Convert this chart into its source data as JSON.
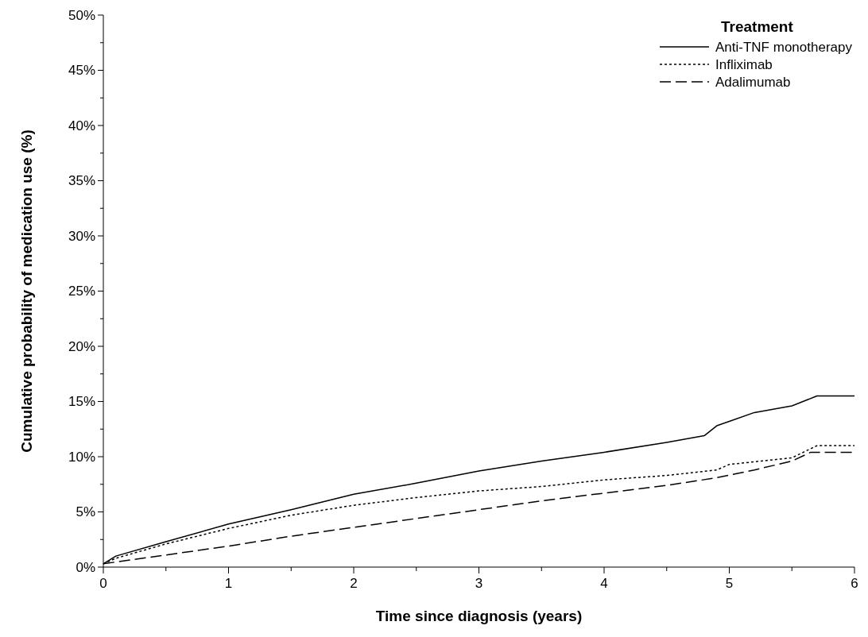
{
  "chart_data": {
    "type": "line",
    "xlabel": "Time since diagnosis (years)",
    "ylabel": "Cumulative probability of medication use (%)",
    "legend_title": "Treatment",
    "legend": "top right",
    "grid": false,
    "xlim": [
      0,
      6
    ],
    "ylim": [
      0,
      50
    ],
    "xticks": [
      0,
      {
        "value": 0.5,
        "label": null
      },
      1,
      {
        "value": 1.5,
        "label": null
      },
      2,
      {
        "value": 2.5,
        "label": null
      },
      3,
      {
        "value": 3.5,
        "label": null
      },
      4,
      {
        "value": 4.5,
        "label": null
      },
      5,
      {
        "value": 5.5,
        "label": null
      },
      6
    ],
    "yticks": [
      {
        "value": 0,
        "label": "0%"
      },
      {
        "value": 2.5,
        "label": null
      },
      {
        "value": 5,
        "label": "5%"
      },
      {
        "value": 7.5,
        "label": null
      },
      {
        "value": 10,
        "label": "10%"
      },
      {
        "value": 12.5,
        "label": null
      },
      {
        "value": 15,
        "label": "15%"
      },
      {
        "value": 17.5,
        "label": null
      },
      {
        "value": 20,
        "label": "20%"
      },
      {
        "value": 22.5,
        "label": null
      },
      {
        "value": 25,
        "label": "25%"
      },
      {
        "value": 27.5,
        "label": null
      },
      {
        "value": 30,
        "label": "30%"
      },
      {
        "value": 32.5,
        "label": null
      },
      {
        "value": 35,
        "label": "35%"
      },
      {
        "value": 37.5,
        "label": null
      },
      {
        "value": 40,
        "label": "40%"
      },
      {
        "value": 42.5,
        "label": null
      },
      {
        "value": 45,
        "label": "45%"
      },
      {
        "value": 47.5,
        "label": null
      },
      {
        "value": 50,
        "label": "50%"
      }
    ],
    "series": [
      {
        "name": "Anti-TNF monotherapy",
        "color": "#000000",
        "line_style": "solid",
        "x": [
          0,
          0.1,
          0.5,
          1,
          1.5,
          2,
          2.5,
          3,
          3.5,
          4,
          4.5,
          4.8,
          4.9,
          5,
          5.2,
          5.5,
          5.7,
          6
        ],
        "values": [
          0.3,
          1.0,
          2.3,
          3.9,
          5.2,
          6.6,
          7.6,
          8.7,
          9.6,
          10.4,
          11.3,
          11.9,
          12.8,
          13.2,
          14.0,
          14.6,
          15.5,
          15.5
        ]
      },
      {
        "name": "Infliximab",
        "color": "#000000",
        "line_style": "dotted",
        "x": [
          0,
          0.1,
          0.5,
          1,
          1.5,
          2,
          2.5,
          3,
          3.5,
          4,
          4.5,
          4.9,
          5,
          5.5,
          5.7,
          6
        ],
        "values": [
          0.3,
          0.8,
          2.1,
          3.5,
          4.7,
          5.6,
          6.3,
          6.9,
          7.3,
          7.9,
          8.3,
          8.8,
          9.3,
          9.9,
          11.0,
          11.0
        ]
      },
      {
        "name": "Adalimumab",
        "color": "#000000",
        "line_style": "dashed",
        "x": [
          0,
          0.5,
          1,
          1.5,
          2,
          2.5,
          3,
          3.5,
          4,
          4.5,
          4.9,
          5.2,
          5.5,
          5.65,
          6
        ],
        "values": [
          0.3,
          1.1,
          1.9,
          2.8,
          3.6,
          4.4,
          5.2,
          6.0,
          6.7,
          7.4,
          8.1,
          8.8,
          9.6,
          10.4,
          10.4
        ]
      }
    ]
  }
}
